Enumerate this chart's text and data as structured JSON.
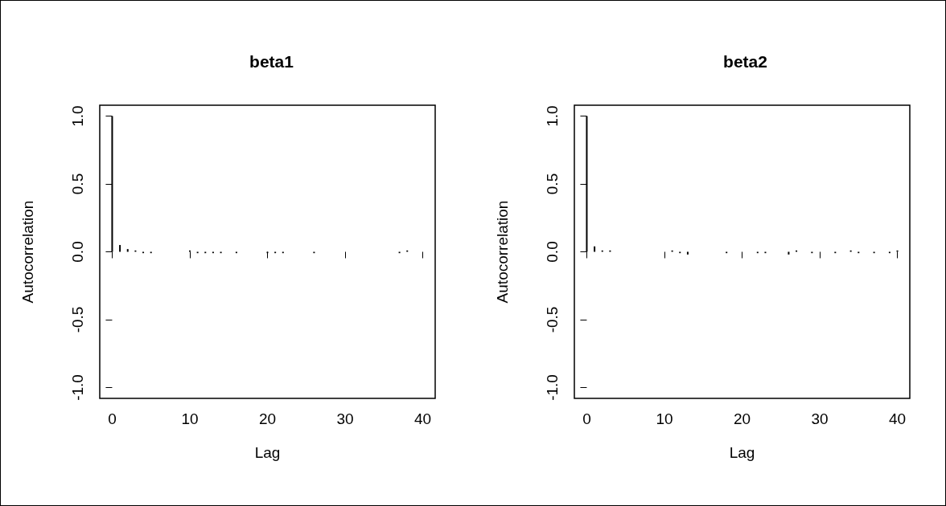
{
  "chart_data": [
    {
      "type": "bar",
      "title": "beta1",
      "xlabel": "Lag",
      "ylabel": "Autocorrelation",
      "x": [
        0,
        1,
        2,
        3,
        4,
        5,
        6,
        7,
        8,
        9,
        10,
        11,
        12,
        13,
        14,
        15,
        16,
        17,
        18,
        19,
        20,
        21,
        22,
        23,
        24,
        25,
        26,
        27,
        28,
        29,
        30,
        31,
        32,
        33,
        34,
        35,
        36,
        37,
        38,
        39,
        40
      ],
      "values": [
        1,
        0.05,
        0.02,
        0.01,
        -0.01,
        -0.01,
        0,
        0,
        0,
        0,
        0.01,
        -0.01,
        -0.01,
        -0.01,
        -0.01,
        0,
        -0.01,
        0,
        0,
        0,
        -0.01,
        -0.01,
        -0.01,
        0,
        0,
        0,
        -0.01,
        0,
        0,
        0,
        0,
        0,
        0,
        0,
        0,
        0,
        0,
        -0.01,
        0.01,
        0,
        0
      ],
      "color": "#000000",
      "xlim": [
        -1.6,
        41.6
      ],
      "xticks": [
        0,
        10,
        20,
        30,
        40
      ],
      "ylim": [
        -1.08,
        1.08
      ],
      "yticks": [
        {
          "value": -1,
          "label": "-1.0"
        },
        {
          "value": -0.5,
          "label": "-0.5"
        },
        {
          "value": 0,
          "label": "0.0"
        },
        {
          "value": 0.5,
          "label": "0.5"
        },
        {
          "value": 1,
          "label": "1.0"
        }
      ],
      "grid": false
    },
    {
      "type": "bar",
      "title": "beta2",
      "xlabel": "Lag",
      "ylabel": "Autocorrelation",
      "x": [
        0,
        1,
        2,
        3,
        4,
        5,
        6,
        7,
        8,
        9,
        10,
        11,
        12,
        13,
        14,
        15,
        16,
        17,
        18,
        19,
        20,
        21,
        22,
        23,
        24,
        25,
        26,
        27,
        28,
        29,
        30,
        31,
        32,
        33,
        34,
        35,
        36,
        37,
        38,
        39,
        40
      ],
      "values": [
        1,
        0.04,
        0.01,
        0.01,
        0,
        0,
        0,
        0,
        0,
        0,
        0,
        0.01,
        -0.01,
        -0.02,
        0,
        0,
        0,
        0,
        -0.01,
        0,
        0,
        0,
        -0.01,
        -0.01,
        0,
        0,
        -0.02,
        0.01,
        0,
        -0.01,
        0,
        0,
        -0.01,
        0,
        0.01,
        -0.01,
        0,
        -0.01,
        0,
        -0.01,
        0.01
      ],
      "color": "#000000",
      "xlim": [
        -1.6,
        41.6
      ],
      "xticks": [
        0,
        10,
        20,
        30,
        40
      ],
      "ylim": [
        -1.08,
        1.08
      ],
      "yticks": [
        {
          "value": -1,
          "label": "-1.0"
        },
        {
          "value": -0.5,
          "label": "-0.5"
        },
        {
          "value": 0,
          "label": "0.0"
        },
        {
          "value": 0.5,
          "label": "0.5"
        },
        {
          "value": 1,
          "label": "1.0"
        }
      ],
      "grid": false
    }
  ]
}
